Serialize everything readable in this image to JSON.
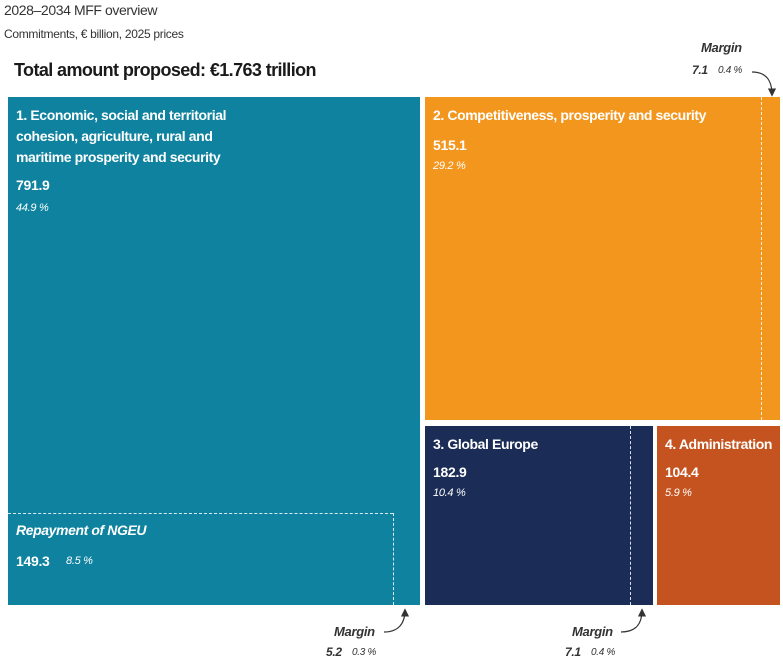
{
  "title": "2028–2034 MFF overview",
  "subtitle": "Commitments, € billion, 2025 prices",
  "total_label": "Total amount proposed: €1.763 trillion",
  "colors": {
    "heading_1": "#0e829e",
    "heading_2": "#f3961e",
    "heading_3": "#1b2c56",
    "heading_4": "#c5531f"
  },
  "chart_data": {
    "type": "treemap",
    "title": "2028–2034 MFF overview",
    "subtitle": "Commitments, € billion, 2025 prices",
    "total": 1763,
    "unit": "€ billion",
    "items": [
      {
        "label": "1. Economic, social and territorial cohesion, agriculture, rural and maritime prosperity and security",
        "value": "791.9",
        "share": "44.9 %",
        "sub": {
          "label": "Repayment of NGEU",
          "value": "149.3",
          "share": "8.5 %"
        },
        "margin": {
          "label": "Margin",
          "value": "5.2",
          "share": "0.3 %"
        }
      },
      {
        "label": "2. Competitiveness, prosperity and security",
        "value": "515.1",
        "share": "29.2 %",
        "margin": {
          "label": "Margin",
          "value": "7.1",
          "share": "0.4 %"
        }
      },
      {
        "label": "3. Global Europe",
        "value": "182.9",
        "share": "10.4 %",
        "margin": {
          "label": "Margin",
          "value": "7.1",
          "share": "0.4 %"
        }
      },
      {
        "label": "4. Administration",
        "value": "104.4",
        "share": "5.9 %"
      }
    ]
  }
}
